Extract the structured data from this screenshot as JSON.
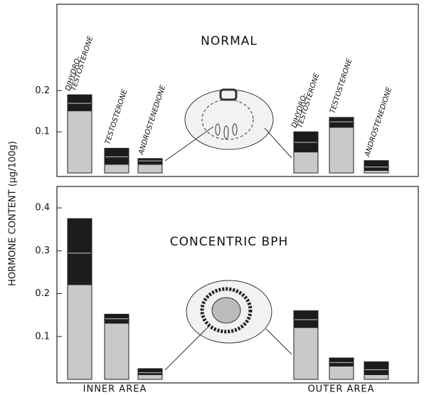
{
  "y_label": "HORMONE CONTENT (µg/100g)",
  "chart_data": [
    {
      "type": "bar",
      "title": "NORMAL",
      "ylim": [
        0,
        0.41
      ],
      "yticks": [
        0.1,
        0.2
      ],
      "inner": {
        "categories": [
          [
            "DIHYDRO-",
            "TESTOSTERONE"
          ],
          [
            "TESTOSTERONE"
          ],
          [
            "ANDROSTENEDIONE"
          ]
        ],
        "series": [
          {
            "color": "#c9c9c9",
            "values": [
              0.15,
              0.02,
              0.02
            ]
          },
          {
            "color": "#1c1c1c",
            "values": [
              0.02,
              0.02,
              0.01
            ]
          },
          {
            "color": "#1c1c1c",
            "values": [
              0.02,
              0.02,
              0.005
            ]
          }
        ]
      },
      "outer": {
        "categories": [
          [
            "DIHYDRO-",
            "TESTOSTERONE"
          ],
          [
            "TESTOSTERONE"
          ],
          [
            "ANDROSTENEDIONE"
          ]
        ],
        "series": [
          {
            "color": "#c9c9c9",
            "values": [
              0.05,
              0.11,
              0.005
            ]
          },
          {
            "color": "#1c1c1c",
            "values": [
              0.025,
              0.015,
              0.01
            ]
          },
          {
            "color": "#1c1c1c",
            "values": [
              0.025,
              0.01,
              0.015
            ]
          }
        ]
      }
    },
    {
      "type": "bar",
      "title": "CONCENTRIC BPH",
      "ylim": [
        0,
        0.45
      ],
      "yticks": [
        0.1,
        0.2,
        0.3,
        0.4
      ],
      "inner": {
        "label": "INNER AREA",
        "series": [
          {
            "color": "#c9c9c9",
            "values": [
              0.22,
              0.13,
              0.01
            ]
          },
          {
            "color": "#1c1c1c",
            "values": [
              0.075,
              0.012,
              0.006
            ]
          },
          {
            "color": "#1c1c1c",
            "values": [
              0.08,
              0.01,
              0.009
            ]
          }
        ]
      },
      "outer": {
        "label": "OUTER AREA",
        "series": [
          {
            "color": "#c9c9c9",
            "values": [
              0.12,
              0.03,
              0.01
            ]
          },
          {
            "color": "#1c1c1c",
            "values": [
              0.02,
              0.01,
              0.013
            ]
          },
          {
            "color": "#1c1c1c",
            "values": [
              0.02,
              0.01,
              0.018
            ]
          }
        ]
      }
    }
  ]
}
